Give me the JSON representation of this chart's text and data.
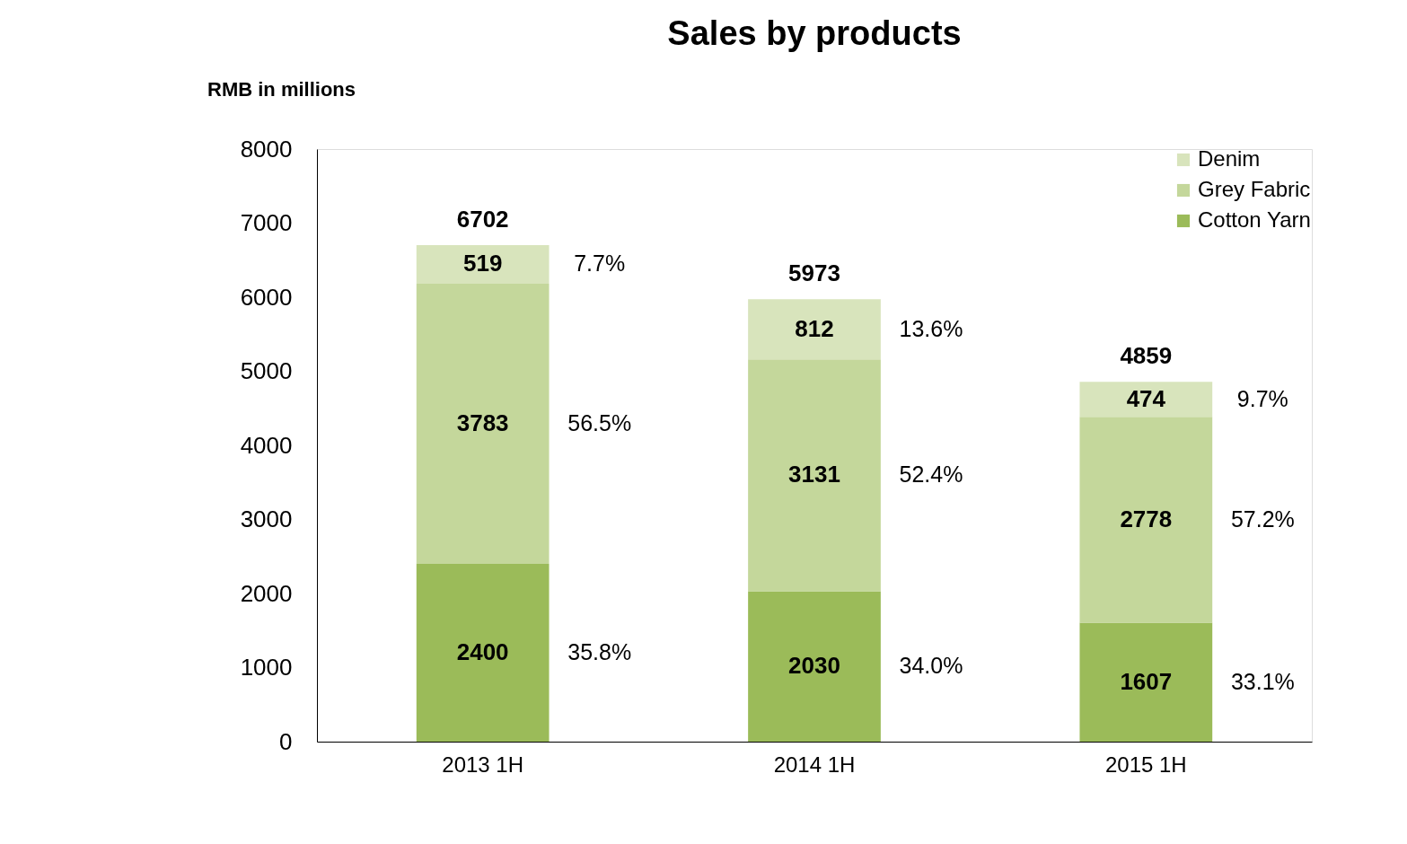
{
  "chart_data": {
    "type": "bar",
    "title": "Sales by products",
    "ylabel": "RMB in millions",
    "categories": [
      "2013 1H",
      "2014 1H",
      "2015 1H"
    ],
    "series": [
      {
        "name": "Cotton Yarn",
        "color": "#9bbb59",
        "values": [
          2400,
          2030,
          1607
        ]
      },
      {
        "name": "Grey Fabric",
        "color": "#c4d79b",
        "values": [
          3783,
          3131,
          2778
        ]
      },
      {
        "name": "Denim",
        "color": "#d8e4bc",
        "values": [
          519,
          812,
          474
        ]
      }
    ],
    "stacked": true,
    "data_labels": true,
    "totals": [
      "6702",
      "5973",
      "4859"
    ],
    "ylim": [
      0,
      8000
    ],
    "yticks": [
      0,
      1000,
      2000,
      3000,
      4000,
      5000,
      6000,
      7000,
      8000
    ],
    "grid": false,
    "legend": "top right",
    "annotations": [
      "35.8%",
      "56.5%",
      "7.7%",
      "34.0%",
      "52.4%",
      "13.6%",
      "33.1%",
      "57.2%",
      "9.7%"
    ]
  }
}
